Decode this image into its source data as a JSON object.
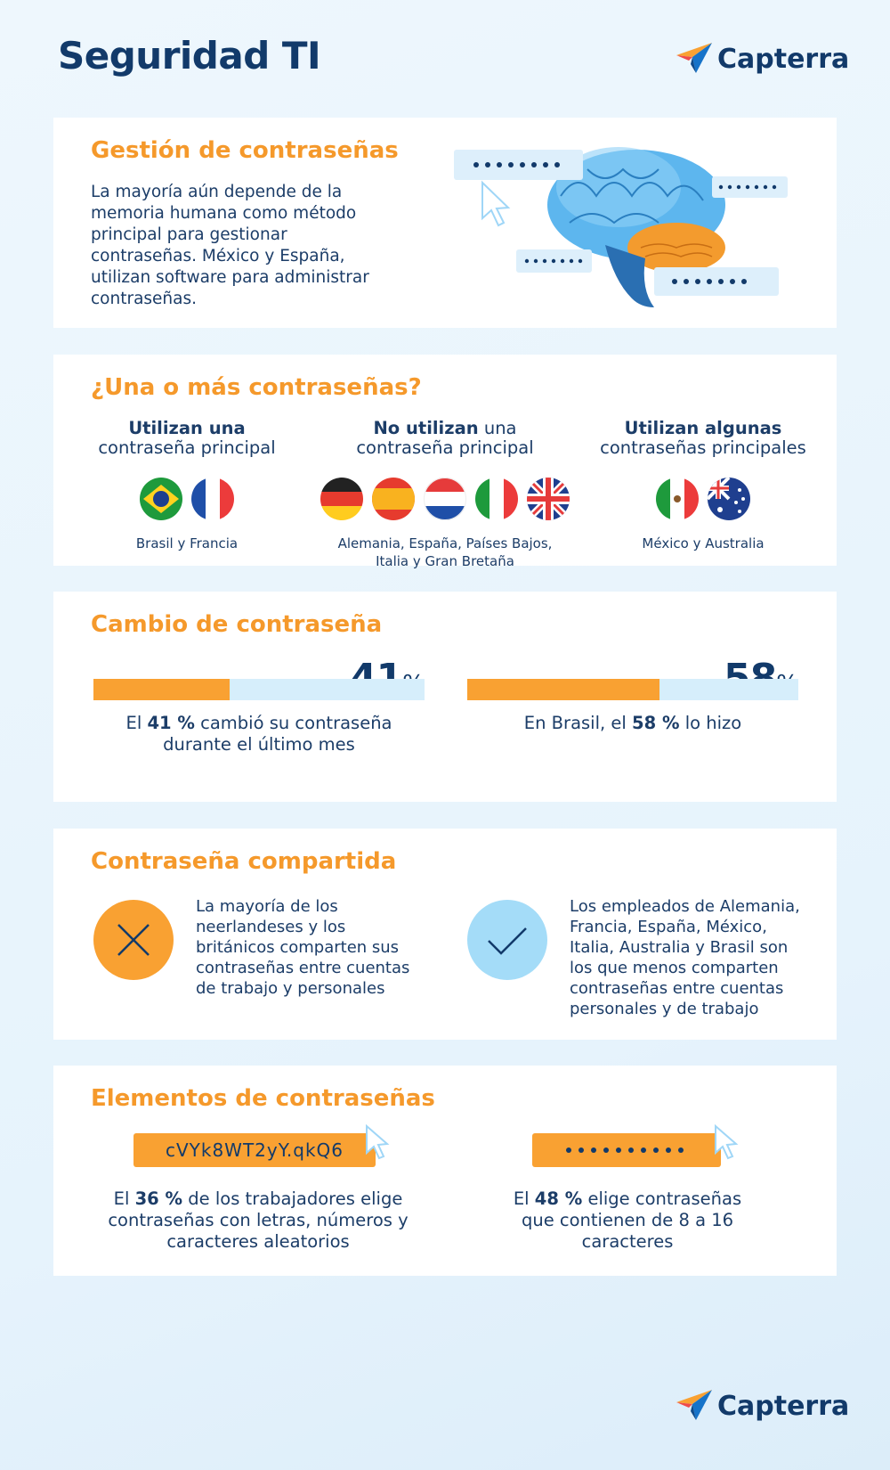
{
  "header": {
    "title": "Seguridad TI",
    "logo": "Capterra"
  },
  "sections": [
    {
      "title": "Gestión de contraseñas",
      "text": "La mayoría aún depende de la memoria humana como método principal para gestionar contraseñas. México y España, utilizan software para administrar contraseñas."
    },
    {
      "title": "¿Una o más contraseñas?",
      "groups": [
        {
          "heading_bold": "Utilizan una",
          "heading_line2": "contraseña principal",
          "countries": "Brasil y Francia"
        },
        {
          "heading_bold": "No utilizan",
          "heading_rest": " una",
          "heading_line2": "contraseña principal",
          "countries": "Alemania, España, Países Bajos, Italia y Gran Bretaña"
        },
        {
          "heading_bold": "Utilizan algunas",
          "heading_line2": "contraseñas principales",
          "countries": "México y Australia"
        }
      ]
    },
    {
      "title": "Cambio de contraseña",
      "xlim": [
        0,
        100
      ],
      "bars": [
        {
          "value": 41,
          "unit": "%",
          "caption_pre": "El ",
          "caption_bold": "41 %",
          "caption_post": " cambió su contraseña durante el último mes"
        },
        {
          "value": 58,
          "unit": "%",
          "caption_pre": "En Brasil, el ",
          "caption_bold": "58 %",
          "caption_post": " lo hizo"
        }
      ]
    },
    {
      "title": "Contraseña compartida",
      "items": [
        {
          "text": "La mayoría de los neerlandeses y los británicos comparten sus contraseñas entre cuentas de trabajo y personales"
        },
        {
          "text": "Los empleados de Alemania, Francia, España, México, Italia, Australia y Brasil son los que menos comparten contraseñas entre cuentas personales y de trabajo"
        }
      ]
    },
    {
      "title": "Elementos de contraseñas",
      "items": [
        {
          "password": "cVYk8WT2yY.qkQ6",
          "caption_pre": "El ",
          "caption_bold": "36 %",
          "caption_post": " de los trabajadores elige contraseñas con letras, números y caracteres aleatorios"
        },
        {
          "caption_pre": "El ",
          "caption_bold": "48 %",
          "caption_post": " elige contraseñas que contienen de 8 a 16 caracteres"
        }
      ]
    }
  ]
}
